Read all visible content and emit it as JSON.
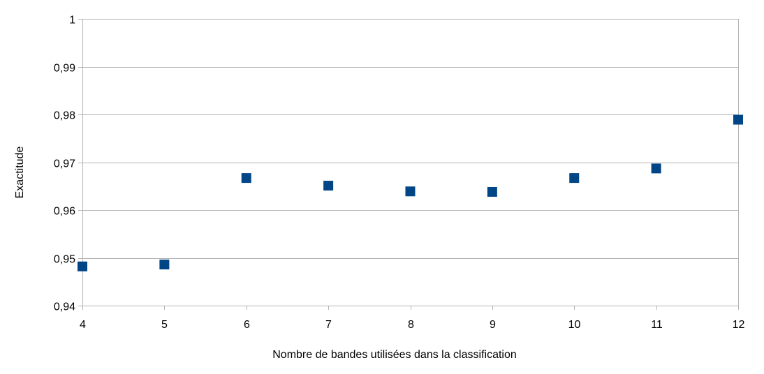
{
  "chart_data": {
    "type": "scatter",
    "title": "",
    "xlabel": "Nombre de bandes utilisées dans la classification",
    "ylabel": "Exactitude",
    "xlim": [
      4,
      12
    ],
    "ylim": [
      0.94,
      1
    ],
    "x_ticks": [
      "4",
      "5",
      "6",
      "7",
      "8",
      "9",
      "10",
      "11",
      "12"
    ],
    "y_ticks": [
      "0,94",
      "0,95",
      "0,96",
      "0,97",
      "0,98",
      "0,99",
      "1"
    ],
    "grid": true,
    "legend": "none",
    "marker": "square",
    "series": [
      {
        "color": "#004586",
        "points": [
          {
            "x": 4,
            "y": 0.9482
          },
          {
            "x": 5,
            "y": 0.9486
          },
          {
            "x": 6,
            "y": 0.9667
          },
          {
            "x": 7,
            "y": 0.9651
          },
          {
            "x": 8,
            "y": 0.9639
          },
          {
            "x": 9,
            "y": 0.9638
          },
          {
            "x": 10,
            "y": 0.9667
          },
          {
            "x": 11,
            "y": 0.9687
          },
          {
            "x": 12,
            "y": 0.9789
          }
        ]
      }
    ]
  },
  "colors": {
    "grid": "#b3b3b3",
    "axis": "#b3b3b3",
    "background": "#ffffff"
  }
}
